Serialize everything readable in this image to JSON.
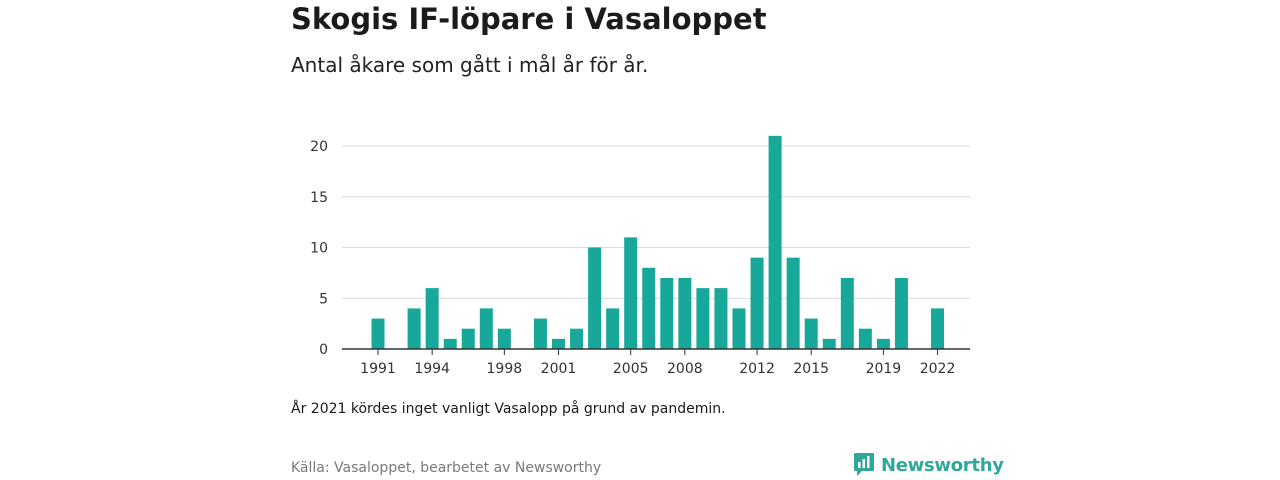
{
  "header": {
    "title": "Skogis IF-löpare i Vasaloppet",
    "subtitle": "Antal åkare som gått i mål år för år."
  },
  "footer": {
    "note": "År 2021 kördes inget vanligt Vasalopp på grund av pandemin.",
    "source": "Källa: Vasaloppet, bearbetet av Newsworthy",
    "logo_text": "Newsworthy"
  },
  "colors": {
    "bar": "#17a89a",
    "grid": "#d9d9d9",
    "axis": "#333333",
    "logo": "#2fa79a"
  },
  "chart_data": {
    "type": "bar",
    "title": "Skogis IF-löpare i Vasaloppet",
    "subtitle": "Antal åkare som gått i mål år för år.",
    "xlabel": "",
    "ylabel": "",
    "grid": true,
    "ylim": [
      0,
      21
    ],
    "yticks": [
      0,
      5,
      10,
      15,
      20
    ],
    "xticks": [
      1991,
      1994,
      1998,
      2001,
      2005,
      2008,
      2012,
      2015,
      2019,
      2022
    ],
    "xrange": [
      1990,
      2023
    ],
    "x": [
      1991,
      1993,
      1994,
      1995,
      1996,
      1997,
      1998,
      2000,
      2001,
      2002,
      2003,
      2004,
      2005,
      2006,
      2007,
      2008,
      2009,
      2010,
      2011,
      2012,
      2013,
      2014,
      2015,
      2016,
      2017,
      2018,
      2019,
      2020,
      2022
    ],
    "values": [
      3,
      4,
      6,
      1,
      2,
      4,
      2,
      3,
      1,
      2,
      10,
      4,
      11,
      8,
      7,
      7,
      6,
      6,
      4,
      9,
      21,
      9,
      3,
      1,
      7,
      2,
      1,
      7,
      4
    ]
  }
}
